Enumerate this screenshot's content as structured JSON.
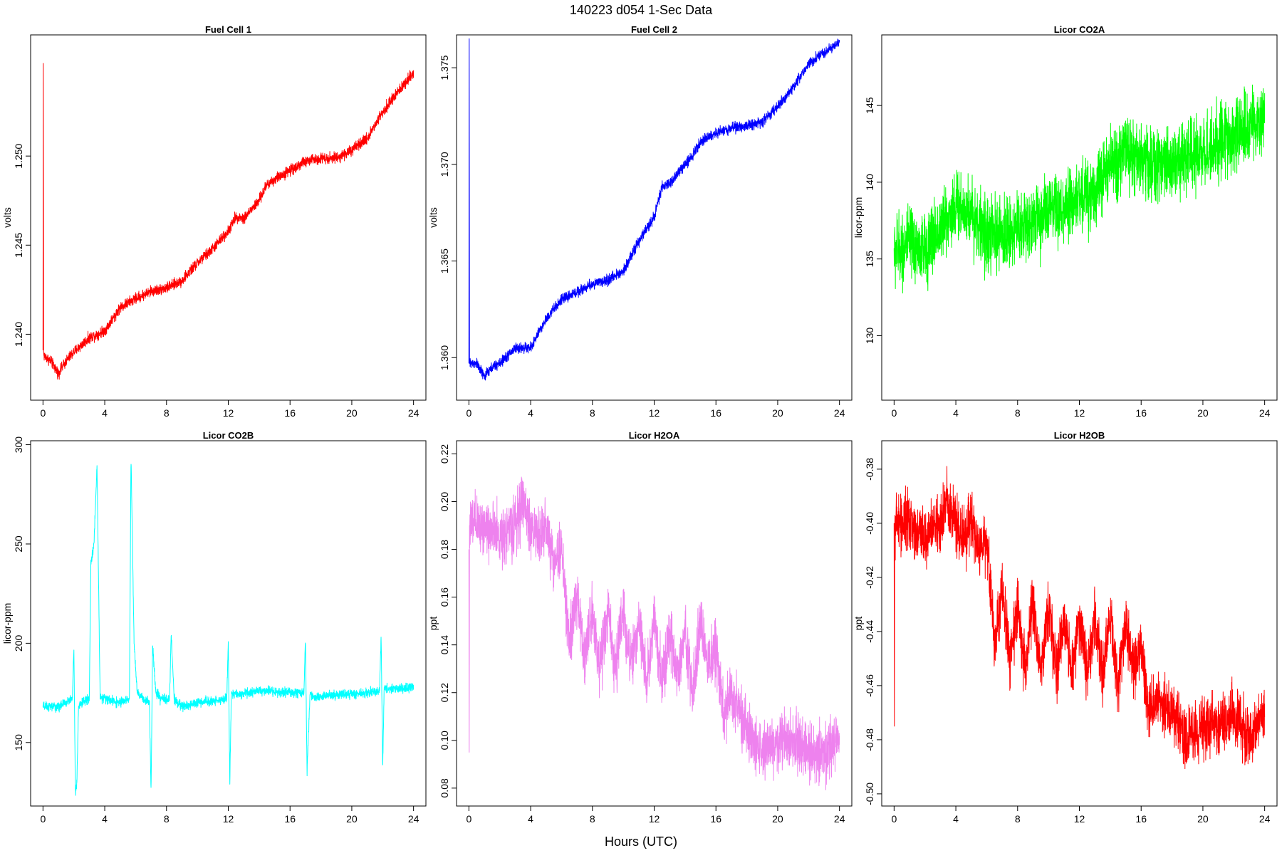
{
  "figure": {
    "title": "140223   d054   1-Sec Data",
    "xlabel": "Hours (UTC)"
  },
  "chart_data": [
    {
      "type": "line",
      "title": "Fuel Cell 1",
      "ylabel": "volts",
      "color": "#ff0000",
      "xlim": [
        -0.8,
        24.8
      ],
      "ylim": [
        1.2363,
        1.2568
      ],
      "xticks": [
        0,
        4,
        8,
        12,
        16,
        20,
        24
      ],
      "xtick_labels": [
        "0",
        "4",
        "8",
        "12",
        "16",
        "20",
        "24"
      ],
      "yticks": [
        1.24,
        1.245,
        1.25
      ],
      "ytick_labels": [
        "1.240",
        "1.245",
        "1.250"
      ],
      "noise": 0.00045,
      "x": [
        0,
        0.02,
        0.04,
        0.06,
        0.5,
        1,
        1.5,
        2,
        3,
        4,
        5,
        6,
        7,
        8,
        9,
        10,
        11,
        12,
        12.5,
        13,
        14,
        14.5,
        15,
        16,
        17,
        18,
        19,
        20,
        21,
        22,
        23,
        24
      ],
      "y": [
        1.2391,
        1.2552,
        1.239,
        1.2388,
        1.2385,
        1.2378,
        1.2385,
        1.239,
        1.2398,
        1.2402,
        1.2415,
        1.242,
        1.2424,
        1.2426,
        1.243,
        1.244,
        1.2448,
        1.2458,
        1.2466,
        1.2465,
        1.2475,
        1.2484,
        1.2487,
        1.2492,
        1.2497,
        1.2499,
        1.2499,
        1.2503,
        1.251,
        1.2525,
        1.2536,
        1.2547
      ]
    },
    {
      "type": "line",
      "title": "Fuel Cell 2",
      "ylabel": "volts",
      "color": "#0000ff",
      "xlim": [
        -0.8,
        24.8
      ],
      "ylim": [
        1.3578,
        1.3767
      ],
      "xticks": [
        0,
        4,
        8,
        12,
        16,
        20,
        24
      ],
      "xtick_labels": [
        "0",
        "4",
        "8",
        "12",
        "16",
        "20",
        "24"
      ],
      "yticks": [
        1.36,
        1.365,
        1.37,
        1.375
      ],
      "ytick_labels": [
        "1.360",
        "1.365",
        "1.370",
        "1.375"
      ],
      "noise": 0.0004,
      "x": [
        0,
        0.02,
        0.04,
        0.06,
        0.5,
        1,
        1.5,
        2,
        3,
        4,
        5,
        6,
        7,
        8,
        9,
        10,
        11,
        12,
        12.5,
        13,
        14,
        14.5,
        15,
        16,
        17,
        18,
        19,
        20,
        21,
        22,
        23,
        24
      ],
      "y": [
        1.3597,
        1.3765,
        1.3597,
        1.3597,
        1.3597,
        1.359,
        1.3595,
        1.3597,
        1.3605,
        1.3605,
        1.362,
        1.363,
        1.3634,
        1.3638,
        1.364,
        1.3645,
        1.366,
        1.3673,
        1.3688,
        1.369,
        1.37,
        1.3705,
        1.3712,
        1.3716,
        1.3719,
        1.372,
        1.3722,
        1.373,
        1.374,
        1.3752,
        1.3758,
        1.3763
      ]
    },
    {
      "type": "line",
      "title": "Licor CO2A",
      "ylabel": "licor-ppm",
      "color": "#00ff00",
      "xlim": [
        -0.8,
        24.8
      ],
      "ylim": [
        125.8,
        149.6
      ],
      "xticks": [
        0,
        4,
        8,
        12,
        16,
        20,
        24
      ],
      "xtick_labels": [
        "0",
        "4",
        "8",
        "12",
        "16",
        "20",
        "24"
      ],
      "yticks": [
        130,
        135,
        140,
        145
      ],
      "ytick_labels": [
        "130",
        "135",
        "140",
        "145"
      ],
      "noise": 3.5,
      "x": [
        0,
        1,
        2,
        3,
        4,
        5,
        6,
        7,
        8,
        9,
        10,
        11,
        12,
        13,
        14,
        15,
        16,
        17,
        18,
        19,
        20,
        21,
        22,
        23,
        24
      ],
      "y": [
        135.5,
        136,
        135.5,
        137,
        138.5,
        138,
        136.5,
        136.5,
        137,
        137.5,
        138,
        138,
        139,
        139.5,
        141,
        142,
        141.5,
        141,
        141.5,
        141.5,
        142,
        142.5,
        143,
        143.5,
        144
      ]
    },
    {
      "type": "line",
      "title": "Licor CO2B",
      "ylabel": "licor-ppm",
      "color": "#00ffff",
      "xlim": [
        -0.8,
        24.8
      ],
      "ylim": [
        118,
        302
      ],
      "xticks": [
        0,
        4,
        8,
        12,
        16,
        20,
        24
      ],
      "xtick_labels": [
        "0",
        "4",
        "8",
        "12",
        "16",
        "20",
        "24"
      ],
      "yticks": [
        150,
        200,
        250,
        300
      ],
      "ytick_labels": [
        "150",
        "200",
        "250",
        "300"
      ],
      "noise": 3.5,
      "x": [
        0,
        1,
        1.9,
        2.0,
        2.1,
        2.2,
        2.3,
        2.5,
        3.0,
        3.1,
        3.3,
        3.5,
        3.7,
        4,
        5,
        5.6,
        5.7,
        5.9,
        6.1,
        6.5,
        6.9,
        7.0,
        7.1,
        7.3,
        7.6,
        8.2,
        8.3,
        8.5,
        9,
        10,
        11,
        11.9,
        12.0,
        12.1,
        12.2,
        12.5,
        14,
        16,
        16.9,
        17.0,
        17.1,
        17.3,
        17.6,
        19,
        21,
        21.8,
        21.9,
        22.0,
        22.1,
        22.3,
        23,
        24
      ],
      "y": [
        168,
        168,
        172,
        198,
        125,
        130,
        168,
        170,
        172,
        240,
        250,
        290,
        173,
        172,
        170,
        172,
        295,
        200,
        175,
        172,
        170,
        125,
        200,
        175,
        172,
        172,
        205,
        172,
        168,
        170,
        171,
        172,
        200,
        130,
        175,
        174,
        176,
        175,
        175,
        203,
        135,
        175,
        173,
        174,
        175,
        176,
        204,
        138,
        178,
        177,
        177,
        178
      ]
    },
    {
      "type": "line",
      "title": "Licor H2OA",
      "ylabel": "ppt",
      "color": "#ee82ee",
      "xlim": [
        -0.8,
        24.8
      ],
      "ylim": [
        0.0725,
        0.2255
      ],
      "xticks": [
        0,
        4,
        8,
        12,
        16,
        20,
        24
      ],
      "xtick_labels": [
        "0",
        "4",
        "8",
        "12",
        "16",
        "20",
        "24"
      ],
      "yticks": [
        0.08,
        0.1,
        0.12,
        0.14,
        0.16,
        0.18,
        0.2,
        0.22
      ],
      "ytick_labels": [
        "0.08",
        "0.10",
        "0.12",
        "0.14",
        "0.16",
        "0.18",
        "0.20",
        "0.22"
      ],
      "noise": 0.018,
      "x": [
        0,
        0.02,
        0.04,
        0.5,
        1,
        2,
        3,
        3.5,
        4,
        4.5,
        5,
        5.5,
        6,
        6.5,
        7,
        7.5,
        8,
        8.5,
        9,
        9.5,
        10,
        10.5,
        11,
        11.5,
        12,
        12.5,
        13,
        13.5,
        14,
        14.5,
        15,
        15.5,
        16,
        16.5,
        17,
        18,
        19,
        20,
        21,
        22,
        23,
        24
      ],
      "y": [
        0.18,
        0.095,
        0.19,
        0.19,
        0.19,
        0.185,
        0.19,
        0.2,
        0.19,
        0.185,
        0.19,
        0.175,
        0.18,
        0.14,
        0.16,
        0.135,
        0.155,
        0.13,
        0.155,
        0.13,
        0.155,
        0.13,
        0.15,
        0.125,
        0.15,
        0.125,
        0.145,
        0.125,
        0.145,
        0.12,
        0.15,
        0.13,
        0.14,
        0.11,
        0.12,
        0.105,
        0.095,
        0.1,
        0.1,
        0.095,
        0.095,
        0.1
      ]
    },
    {
      "type": "line",
      "title": "Licor H2OB",
      "ylabel": "ppt",
      "color": "#ff0000",
      "xlim": [
        -0.8,
        24.8
      ],
      "ylim": [
        -0.5045,
        -0.3695
      ],
      "xticks": [
        0,
        4,
        8,
        12,
        16,
        20,
        24
      ],
      "xtick_labels": [
        "0",
        "4",
        "8",
        "12",
        "16",
        "20",
        "24"
      ],
      "yticks": [
        -0.5,
        -0.48,
        -0.46,
        -0.44,
        -0.42,
        -0.4,
        -0.38
      ],
      "ytick_labels": [
        "-0.50",
        "-0.48",
        "-0.46",
        "-0.44",
        "-0.42",
        "-0.40",
        "-0.38"
      ],
      "noise": 0.016,
      "x": [
        0,
        0.02,
        0.04,
        0.5,
        1,
        2,
        3,
        3.5,
        4,
        4.5,
        5,
        5.5,
        6,
        6.5,
        7,
        7.5,
        8,
        8.5,
        9,
        9.5,
        10,
        10.5,
        11,
        11.5,
        12,
        12.5,
        13,
        13.5,
        14,
        14.5,
        15,
        15.5,
        16,
        16.5,
        17,
        18,
        19,
        20,
        21,
        22,
        23,
        24
      ],
      "y": [
        -0.4,
        -0.475,
        -0.4,
        -0.4,
        -0.4,
        -0.405,
        -0.4,
        -0.39,
        -0.4,
        -0.405,
        -0.4,
        -0.41,
        -0.405,
        -0.445,
        -0.425,
        -0.45,
        -0.43,
        -0.455,
        -0.43,
        -0.455,
        -0.43,
        -0.455,
        -0.435,
        -0.455,
        -0.435,
        -0.455,
        -0.435,
        -0.455,
        -0.435,
        -0.46,
        -0.435,
        -0.455,
        -0.445,
        -0.47,
        -0.465,
        -0.47,
        -0.48,
        -0.475,
        -0.475,
        -0.47,
        -0.48,
        -0.47
      ]
    }
  ]
}
